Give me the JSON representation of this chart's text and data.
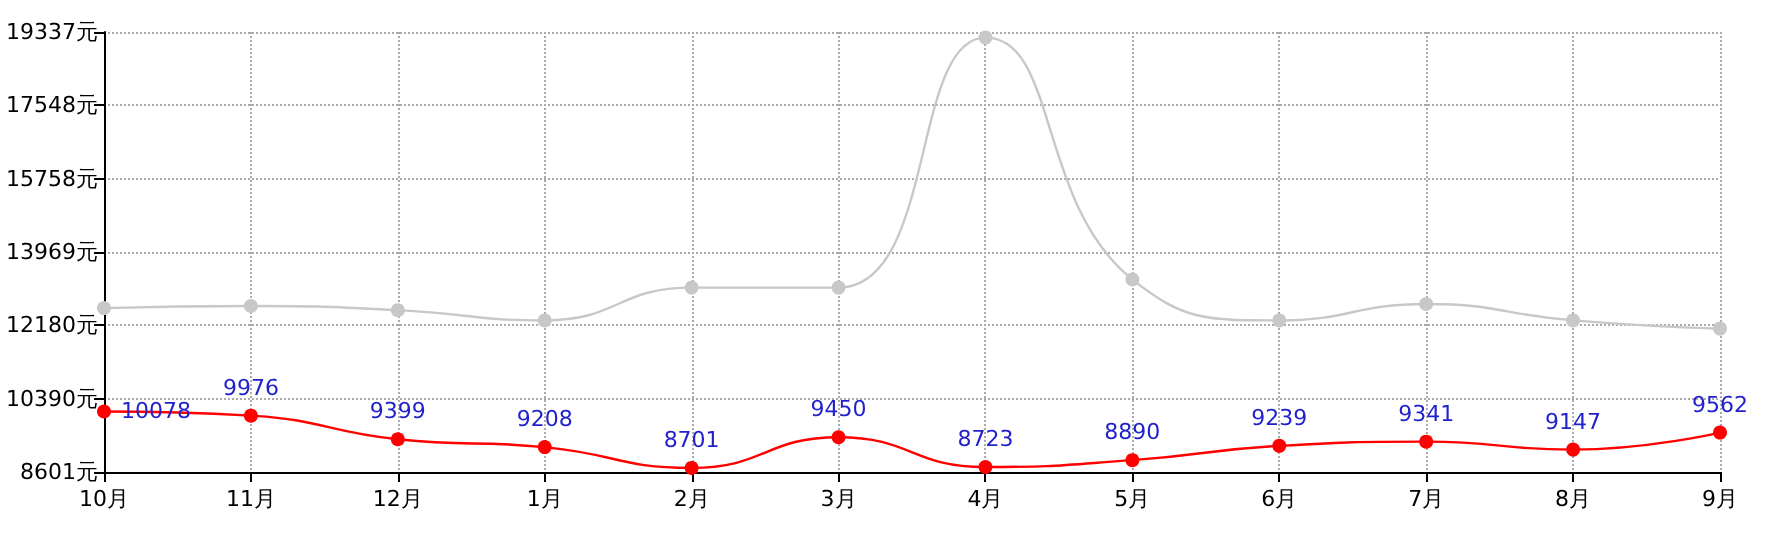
{
  "chart_data": {
    "type": "line",
    "categories": [
      "10月",
      "11月",
      "12月",
      "1月",
      "2月",
      "3月",
      "4月",
      "5月",
      "6月",
      "7月",
      "8月",
      "9月"
    ],
    "series": [
      {
        "color": "#c8c8c8",
        "values": [
          12600,
          12650,
          12550,
          12300,
          13100,
          13100,
          19200,
          13300,
          12300,
          12700,
          12300,
          12100
        ]
      },
      {
        "color": "#ff0000",
        "values": [
          10078,
          9976,
          9399,
          9208,
          8701,
          9450,
          8723,
          8890,
          9239,
          9341,
          9147,
          9562
        ],
        "value_labels": [
          "10078",
          "9976",
          "9399",
          "9208",
          "8701",
          "9450",
          "8723",
          "8890",
          "9239",
          "9341",
          "9147",
          "9562"
        ]
      }
    ],
    "ylim": [
      8601,
      19337
    ],
    "yticks": [
      {
        "value": 8601,
        "label": "8601元"
      },
      {
        "value": 10390,
        "label": "10390元"
      },
      {
        "value": 12180,
        "label": "12180元"
      },
      {
        "value": 13969,
        "label": "13969元"
      },
      {
        "value": 15758,
        "label": "15758元"
      },
      {
        "value": 17548,
        "label": "17548元"
      },
      {
        "value": 19337,
        "label": "19337元"
      }
    ],
    "grid": true,
    "marker": "circle",
    "line_style": "solid"
  }
}
